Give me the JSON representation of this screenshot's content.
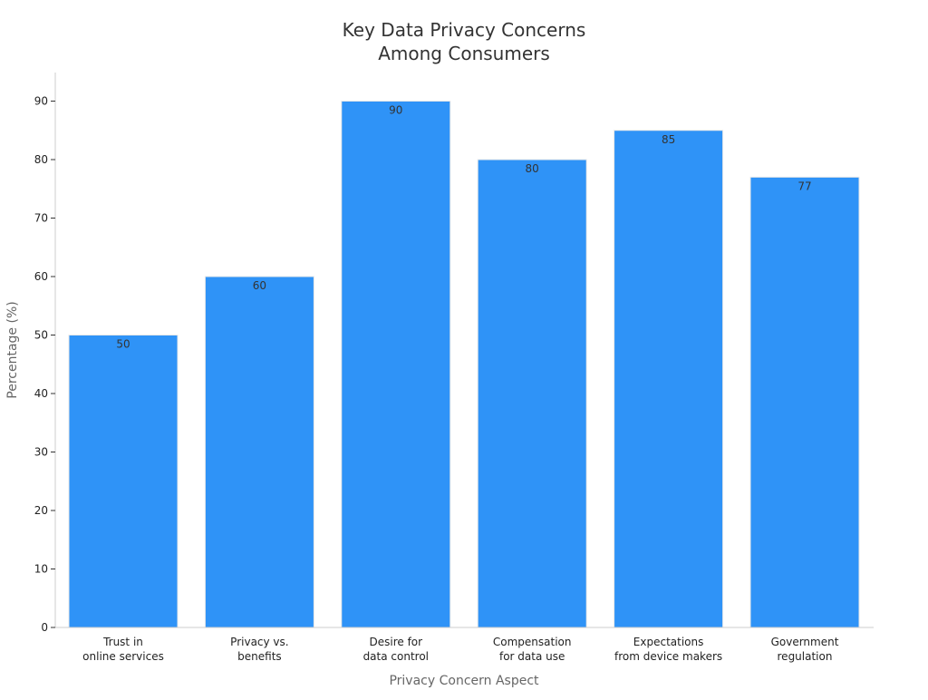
{
  "chart_data": {
    "type": "bar",
    "title": [
      "Key Data Privacy Concerns",
      "Among Consumers"
    ],
    "xlabel": "Privacy Concern Aspect",
    "ylabel": "Percentage (%)",
    "categories": [
      [
        "Trust in",
        "online services"
      ],
      [
        "Privacy vs.",
        "benefits"
      ],
      [
        "Desire for",
        "data control"
      ],
      [
        "Compensation",
        "for data use"
      ],
      [
        "Expectations",
        "from device makers"
      ],
      [
        "Government",
        "regulation"
      ]
    ],
    "values": [
      50,
      60,
      90,
      80,
      85,
      77
    ],
    "yticks": [
      0,
      10,
      20,
      30,
      40,
      50,
      60,
      70,
      80,
      90
    ],
    "ylim": [
      0,
      95
    ],
    "grid": false,
    "legend": "none",
    "colors": {
      "bar": "#2f93f7",
      "bar_edge": "#e8e8e8"
    }
  }
}
